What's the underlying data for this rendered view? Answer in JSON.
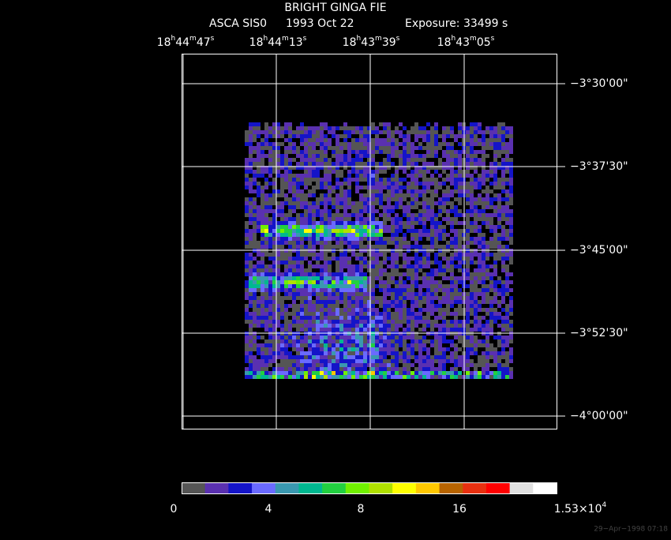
{
  "title": "BRIGHT GINGA FIE",
  "subtitle": {
    "instrument": "ASCA SIS0",
    "date": "1993 Oct 22",
    "exposure": "Exposure: 33499 s"
  },
  "ra_ticks": [
    [
      "18",
      "h",
      "44",
      "m",
      "47",
      "s"
    ],
    [
      "18",
      "h",
      "44",
      "m",
      "13",
      "s"
    ],
    [
      "18",
      "h",
      "43",
      "m",
      "39",
      "s"
    ],
    [
      "18",
      "h",
      "43",
      "m",
      "05",
      "s"
    ]
  ],
  "dec_ticks": [
    "−3°30'00\"",
    "−3°37'30\"",
    "−3°45'00\"",
    "−3°52'30\"",
    "−4°00'00\""
  ],
  "colorbar": {
    "colors": [
      "#555555",
      "#5a30b0",
      "#1414c8",
      "#6a6aff",
      "#3a98b0",
      "#00b890",
      "#22d040",
      "#70f000",
      "#b0e000",
      "#ffff00",
      "#ffc800",
      "#b86400",
      "#e83010",
      "#ff0000",
      "#e0e0e0",
      "#ffffff"
    ],
    "labels": [
      [
        "0"
      ],
      [
        "4"
      ],
      [
        "8"
      ],
      [
        "16"
      ],
      [
        "1.53×10",
        "4"
      ]
    ]
  },
  "timestamp": "29−Apr−1998 07:18"
}
